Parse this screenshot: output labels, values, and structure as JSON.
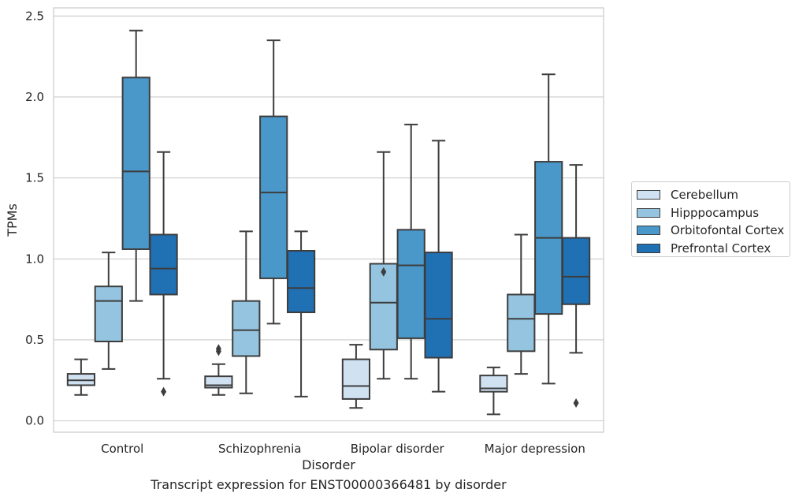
{
  "chart_data": {
    "type": "box",
    "title": "Transcript expression for ENST00000366481 by disorder",
    "xlabel": "Disorder",
    "ylabel": "TPMs",
    "ylim": [
      -0.07,
      2.55
    ],
    "yticks": [
      "0.0",
      "0.5",
      "1.0",
      "1.5",
      "2.0",
      "2.5"
    ],
    "ytick_values": [
      0,
      0.5,
      1.0,
      1.5,
      2.0,
      2.5
    ],
    "grid": true,
    "legend_position": "right",
    "categories": [
      "Control",
      "Schizophrenia",
      "Bipolar disorder",
      "Major depression"
    ],
    "series": [
      {
        "name": "Cerebellum",
        "color": "#d0e1f2",
        "boxes": [
          {
            "whislo": 0.16,
            "q1": 0.22,
            "med": 0.25,
            "q3": 0.29,
            "whishi": 0.38,
            "fliers": []
          },
          {
            "whislo": 0.16,
            "q1": 0.205,
            "med": 0.22,
            "q3": 0.275,
            "whishi": 0.35,
            "fliers": [
              0.43,
              0.445
            ]
          },
          {
            "whislo": 0.08,
            "q1": 0.135,
            "med": 0.215,
            "q3": 0.38,
            "whishi": 0.47,
            "fliers": []
          },
          {
            "whislo": 0.04,
            "q1": 0.18,
            "med": 0.2,
            "q3": 0.28,
            "whishi": 0.33,
            "fliers": []
          }
        ]
      },
      {
        "name": "Hipppocampus",
        "color": "#94c4df",
        "boxes": [
          {
            "whislo": 0.32,
            "q1": 0.49,
            "med": 0.74,
            "q3": 0.83,
            "whishi": 1.04,
            "fliers": []
          },
          {
            "whislo": 0.17,
            "q1": 0.4,
            "med": 0.56,
            "q3": 0.74,
            "whishi": 1.17,
            "fliers": []
          },
          {
            "whislo": 0.26,
            "q1": 0.44,
            "med": 0.73,
            "q3": 0.97,
            "whishi": 1.66,
            "fliers": [
              0.92
            ]
          },
          {
            "whislo": 0.29,
            "q1": 0.43,
            "med": 0.63,
            "q3": 0.78,
            "whishi": 1.15,
            "fliers": []
          }
        ]
      },
      {
        "name": "Orbitofontal Cortex",
        "color": "#4a98c9",
        "boxes": [
          {
            "whislo": 0.74,
            "q1": 1.06,
            "med": 1.54,
            "q3": 2.12,
            "whishi": 2.41,
            "fliers": []
          },
          {
            "whislo": 0.6,
            "q1": 0.88,
            "med": 1.41,
            "q3": 1.88,
            "whishi": 2.35,
            "fliers": []
          },
          {
            "whislo": 0.26,
            "q1": 0.51,
            "med": 0.96,
            "q3": 1.18,
            "whishi": 1.83,
            "fliers": []
          },
          {
            "whislo": 0.23,
            "q1": 0.66,
            "med": 1.13,
            "q3": 1.6,
            "whishi": 2.14,
            "fliers": []
          }
        ]
      },
      {
        "name": "Prefrontal Cortex",
        "color": "#2070b4",
        "boxes": [
          {
            "whislo": 0.26,
            "q1": 0.78,
            "med": 0.94,
            "q3": 1.15,
            "whishi": 1.66,
            "fliers": [
              0.18
            ]
          },
          {
            "whislo": 0.15,
            "q1": 0.67,
            "med": 0.82,
            "q3": 1.05,
            "whishi": 1.17,
            "fliers": []
          },
          {
            "whislo": 0.18,
            "q1": 0.39,
            "med": 0.63,
            "q3": 1.04,
            "whishi": 1.73,
            "fliers": []
          },
          {
            "whislo": 0.42,
            "q1": 0.72,
            "med": 0.89,
            "q3": 1.13,
            "whishi": 1.58,
            "fliers": [
              0.11
            ]
          }
        ]
      }
    ]
  }
}
